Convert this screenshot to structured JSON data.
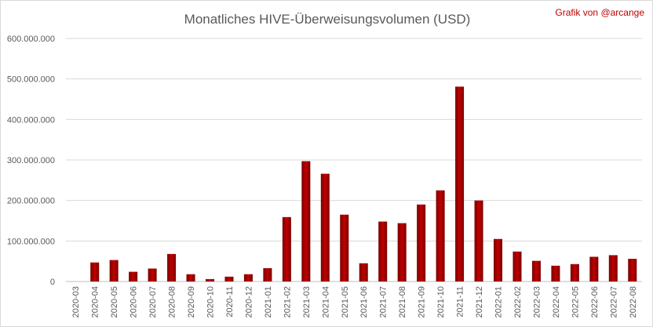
{
  "chart_data": {
    "type": "bar",
    "title": "Monatliches HIVE-Überweisungsvolumen (USD)",
    "credit": "Grafik von @arcange",
    "xlabel": "",
    "ylabel": "",
    "ylim": [
      0,
      600000000
    ],
    "yticks": [
      0,
      100000000,
      200000000,
      300000000,
      400000000,
      500000000,
      600000000
    ],
    "ytick_labels": [
      "0",
      "100.000.000",
      "200.000.000",
      "300.000.000",
      "400.000.000",
      "500.000.000",
      "600.000.000"
    ],
    "grid": true,
    "legend": "none",
    "bar_color": "#c00000",
    "bar_color_dark": "#7a0000",
    "categories": [
      "2020-03",
      "2020-04",
      "2020-05",
      "2020-06",
      "2020-07",
      "2020-08",
      "2020-09",
      "2020-10",
      "2020-11",
      "2020-12",
      "2021-01",
      "2021-02",
      "2021-03",
      "2021-04",
      "2021-05",
      "2021-06",
      "2021-07",
      "2021-08",
      "2021-09",
      "2021-10",
      "2021-11",
      "2021-12",
      "2022-01",
      "2022-02",
      "2022-03",
      "2022-04",
      "2022-05",
      "2022-06",
      "2022-07",
      "2022-08"
    ],
    "values": [
      0,
      47000000,
      53000000,
      24000000,
      32000000,
      68000000,
      18000000,
      6000000,
      12000000,
      18000000,
      33000000,
      159000000,
      297000000,
      266000000,
      165000000,
      45000000,
      148000000,
      144000000,
      190000000,
      225000000,
      481000000,
      200000000,
      105000000,
      74000000,
      51000000,
      39000000,
      43000000,
      61000000,
      65000000,
      56000000
    ]
  }
}
